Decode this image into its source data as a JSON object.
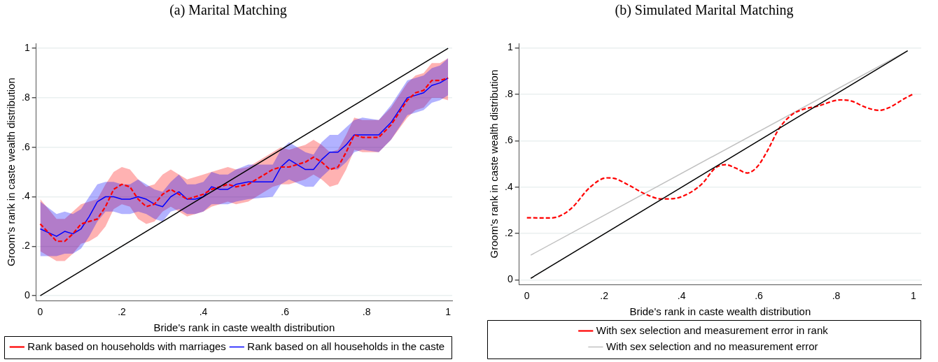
{
  "chart_data": [
    {
      "type": "line",
      "title": "(a) Marital Matching",
      "xlabel": "Bride's rank in caste wealth distribution",
      "ylabel": "Groom's rank in caste wealth distribution",
      "x": [
        0,
        0.04,
        0.06,
        0.08,
        0.1,
        0.12,
        0.14,
        0.16,
        0.18,
        0.2,
        0.22,
        0.24,
        0.26,
        0.28,
        0.3,
        0.32,
        0.34,
        0.36,
        0.38,
        0.4,
        0.42,
        0.44,
        0.46,
        0.48,
        0.51,
        0.57,
        0.59,
        0.61,
        0.65,
        0.67,
        0.69,
        0.71,
        0.73,
        0.75,
        0.77,
        0.79,
        0.83,
        0.86,
        0.9,
        0.92,
        0.94,
        0.96,
        0.98,
        1.0
      ],
      "series": [
        {
          "name": "Rank based on all households in the caste",
          "color": "#0000ff",
          "values": [
            0.27,
            0.24,
            0.26,
            0.25,
            0.27,
            0.32,
            0.38,
            0.4,
            0.4,
            0.39,
            0.39,
            0.4,
            0.39,
            0.37,
            0.36,
            0.4,
            0.42,
            0.39,
            0.39,
            0.4,
            0.44,
            0.43,
            0.43,
            0.45,
            0.46,
            0.46,
            0.52,
            0.55,
            0.51,
            0.51,
            0.55,
            0.58,
            0.58,
            0.61,
            0.65,
            0.65,
            0.65,
            0.7,
            0.8,
            0.81,
            0.82,
            0.85,
            0.86,
            0.88
          ],
          "lower": [
            0.16,
            0.16,
            0.17,
            0.17,
            0.19,
            0.24,
            0.3,
            0.34,
            0.34,
            0.33,
            0.33,
            0.34,
            0.33,
            0.31,
            0.3,
            0.34,
            0.35,
            0.33,
            0.33,
            0.34,
            0.37,
            0.37,
            0.37,
            0.38,
            0.39,
            0.4,
            0.45,
            0.47,
            0.44,
            0.44,
            0.48,
            0.51,
            0.51,
            0.54,
            0.58,
            0.59,
            0.58,
            0.63,
            0.73,
            0.74,
            0.75,
            0.78,
            0.79,
            0.81
          ],
          "upper": [
            0.38,
            0.33,
            0.34,
            0.33,
            0.35,
            0.4,
            0.45,
            0.46,
            0.46,
            0.45,
            0.45,
            0.47,
            0.45,
            0.43,
            0.42,
            0.46,
            0.49,
            0.45,
            0.45,
            0.46,
            0.5,
            0.49,
            0.49,
            0.51,
            0.53,
            0.53,
            0.59,
            0.62,
            0.58,
            0.57,
            0.62,
            0.65,
            0.65,
            0.68,
            0.71,
            0.72,
            0.71,
            0.77,
            0.87,
            0.88,
            0.89,
            0.92,
            0.93,
            0.96
          ]
        },
        {
          "name": "Rank based on households with marriages",
          "color": "#ff0000",
          "line_style": "dashed",
          "values": [
            0.29,
            0.22,
            0.22,
            0.25,
            0.29,
            0.3,
            0.31,
            0.36,
            0.43,
            0.45,
            0.44,
            0.39,
            0.36,
            0.37,
            0.41,
            0.43,
            0.41,
            0.39,
            0.4,
            0.41,
            0.43,
            0.44,
            0.45,
            0.44,
            0.45,
            0.51,
            0.52,
            0.52,
            0.54,
            0.56,
            0.54,
            0.51,
            0.52,
            0.58,
            0.65,
            0.64,
            0.64,
            0.69,
            0.79,
            0.82,
            0.83,
            0.87,
            0.87,
            0.88
          ],
          "lower": [
            0.18,
            0.14,
            0.14,
            0.17,
            0.21,
            0.22,
            0.24,
            0.28,
            0.35,
            0.37,
            0.36,
            0.31,
            0.29,
            0.3,
            0.34,
            0.36,
            0.34,
            0.32,
            0.33,
            0.34,
            0.36,
            0.37,
            0.38,
            0.37,
            0.38,
            0.44,
            0.45,
            0.45,
            0.47,
            0.49,
            0.47,
            0.44,
            0.45,
            0.51,
            0.59,
            0.58,
            0.58,
            0.63,
            0.72,
            0.75,
            0.76,
            0.8,
            0.8,
            0.79
          ],
          "upper": [
            0.39,
            0.31,
            0.31,
            0.34,
            0.37,
            0.38,
            0.39,
            0.45,
            0.5,
            0.52,
            0.51,
            0.47,
            0.44,
            0.45,
            0.49,
            0.51,
            0.49,
            0.47,
            0.48,
            0.49,
            0.5,
            0.51,
            0.52,
            0.51,
            0.52,
            0.58,
            0.6,
            0.59,
            0.61,
            0.63,
            0.61,
            0.58,
            0.59,
            0.65,
            0.72,
            0.71,
            0.71,
            0.76,
            0.86,
            0.89,
            0.9,
            0.94,
            0.94,
            0.96
          ]
        },
        {
          "color": "#000000",
          "x": [
            0,
            1
          ],
          "values": [
            0,
            1
          ]
        }
      ],
      "xlim": [
        -0.01,
        1.01
      ],
      "xticks": [
        {
          "value": 0,
          "label": "0"
        },
        {
          "value": 0.2,
          "label": ".2"
        },
        {
          "value": 0.4,
          "label": ".4"
        },
        {
          "value": 0.6,
          "label": ".6"
        },
        {
          "value": 0.8,
          "label": ".8"
        },
        {
          "value": 1,
          "label": "1"
        }
      ],
      "ylim": [
        -0.02,
        1.02
      ],
      "yticks": [
        {
          "value": 0,
          "label": "0"
        },
        {
          "value": 0.2,
          "label": ".2"
        },
        {
          "value": 0.4,
          "label": ".4"
        },
        {
          "value": 0.6,
          "label": ".6"
        },
        {
          "value": 0.8,
          "label": ".8"
        },
        {
          "value": 1,
          "label": "1"
        }
      ],
      "grid": "y",
      "legend": "bottom"
    },
    {
      "type": "line",
      "title": "(b) Simulated Marital Matching",
      "xlabel": "Bride's rank in caste wealth distribution",
      "ylabel": "Groom's rank in caste wealth distribution",
      "series": [
        {
          "name": "With sex selection and no measurement error",
          "color": "#c0c0c0",
          "x": [
            0.01,
            0.985
          ],
          "values": [
            0.107,
            0.988
          ]
        },
        {
          "name": "With sex selection and measurement error in rank",
          "color": "#ff0000",
          "line_style": "dashed",
          "x": [
            0,
            0.057,
            0.083,
            0.116,
            0.163,
            0.206,
            0.225,
            0.262,
            0.308,
            0.348,
            0.381,
            0.421,
            0.454,
            0.487,
            0.514,
            0.54,
            0.57,
            0.596,
            0.619,
            0.653,
            0.686,
            0.712,
            0.752,
            0.811,
            0.838,
            0.878,
            0.911,
            0.937,
            0.977,
            1.0
          ],
          "values": [
            0.268,
            0.267,
            0.274,
            0.31,
            0.399,
            0.44,
            0.438,
            0.41,
            0.369,
            0.349,
            0.351,
            0.375,
            0.416,
            0.482,
            0.497,
            0.482,
            0.461,
            0.488,
            0.547,
            0.654,
            0.713,
            0.734,
            0.749,
            0.776,
            0.772,
            0.743,
            0.731,
            0.743,
            0.782,
            0.802
          ]
        },
        {
          "color": "#000000",
          "x": [
            0.01,
            0.985
          ],
          "values": [
            0.007,
            0.988
          ]
        }
      ],
      "xlim": [
        -0.02,
        1.02
      ],
      "xticks": [
        {
          "value": 0,
          "label": "0"
        },
        {
          "value": 0.2,
          "label": ".2"
        },
        {
          "value": 0.4,
          "label": ".4"
        },
        {
          "value": 0.6,
          "label": ".6"
        },
        {
          "value": 0.8,
          "label": ".8"
        },
        {
          "value": 1,
          "label": "1"
        }
      ],
      "ylim": [
        -0.02,
        1.02
      ],
      "yticks": [
        {
          "value": 0,
          "label": "0"
        },
        {
          "value": 0.2,
          "label": ".2"
        },
        {
          "value": 0.4,
          "label": ".4"
        },
        {
          "value": 0.6,
          "label": ".6"
        },
        {
          "value": 0.8,
          "label": ".8"
        },
        {
          "value": 1,
          "label": "1"
        }
      ],
      "grid": "y",
      "legend": "bottom"
    }
  ]
}
